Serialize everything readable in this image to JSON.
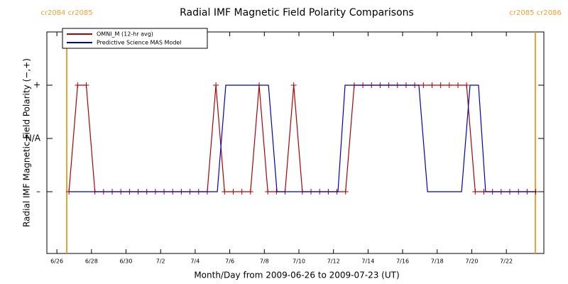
{
  "chart_data": {
    "type": "line",
    "title": "Radial IMF Magnetic Field Polarity Comparisons",
    "x_label": "Month/Day from 2009-06-26 to 2009-07-23 (UT)",
    "y_label": "Radial IMF Magnetic Field Polarity (−,+)",
    "xlim": [
      25.42,
      54.17
    ],
    "ylim": [
      -2.16,
      2
    ],
    "xticks": [
      {
        "value": 26,
        "label": "6/26"
      },
      {
        "value": 28,
        "label": "6/28"
      },
      {
        "value": 30,
        "label": "6/30"
      },
      {
        "value": 32,
        "label": "7/2"
      },
      {
        "value": 34,
        "label": "7/4"
      },
      {
        "value": 36,
        "label": "7/6"
      },
      {
        "value": 38,
        "label": "7/8"
      },
      {
        "value": 40,
        "label": "7/10"
      },
      {
        "value": 42,
        "label": "7/12"
      },
      {
        "value": 44,
        "label": "7/14"
      },
      {
        "value": 46,
        "label": "7/16"
      },
      {
        "value": 48,
        "label": "7/18"
      },
      {
        "value": 50,
        "label": "7/20"
      },
      {
        "value": 52,
        "label": "7/22"
      }
    ],
    "yticks": [
      {
        "value": 1,
        "label": "+"
      },
      {
        "value": 0,
        "label": "N/A"
      },
      {
        "value": -1,
        "label": "–"
      }
    ],
    "boundaries": [
      {
        "x": 26.57,
        "label": "cr2084 cr2085",
        "color": "#f0a030"
      },
      {
        "x": 53.68,
        "label": "cr2085 cr2086",
        "color": "#f0a030"
      }
    ],
    "legend": "top-left",
    "series": [
      {
        "name": "OMNI_M (12-hr avg)",
        "color": "#b00000",
        "marker": "+",
        "x": [
          26.7,
          27.2,
          27.7,
          28.2,
          28.7,
          29.2,
          29.7,
          30.2,
          30.7,
          31.2,
          31.7,
          32.2,
          32.7,
          33.2,
          33.7,
          34.2,
          34.7,
          35.2,
          35.7,
          36.2,
          36.7,
          37.2,
          37.7,
          38.2,
          38.7,
          39.2,
          39.7,
          40.2,
          40.7,
          41.2,
          41.7,
          42.2,
          42.7,
          43.2,
          43.7,
          44.2,
          44.7,
          45.2,
          45.7,
          46.2,
          46.7,
          47.2,
          47.7,
          48.2,
          48.7,
          49.2,
          49.7,
          50.2,
          50.7,
          51.2,
          51.7,
          52.2,
          52.7,
          53.2,
          53.7
        ],
        "values": [
          -1,
          1,
          1,
          -1,
          -1,
          -1,
          -1,
          -1,
          -1,
          -1,
          -1,
          -1,
          -1,
          -1,
          -1,
          -1,
          -1,
          1,
          -1,
          -1,
          -1,
          -1,
          1,
          -1,
          -1,
          -1,
          1,
          -1,
          -1,
          -1,
          -1,
          -1,
          -1,
          1,
          1,
          1,
          1,
          1,
          1,
          1,
          1,
          1,
          1,
          1,
          1,
          1,
          1,
          -1,
          -1,
          -1,
          -1,
          -1,
          -1,
          -1,
          -1
        ]
      },
      {
        "name": "Predictive Science MAS Model",
        "color": "#0000c0",
        "x": [
          26.7,
          35.28,
          35.77,
          38.24,
          38.73,
          42.26,
          42.67,
          46.94,
          47.44,
          49.41,
          49.9,
          50.39,
          50.8,
          53.72
        ],
        "values": [
          -1,
          -1,
          1,
          1,
          -1,
          -1,
          1,
          1,
          -1,
          -1,
          1,
          1,
          -1,
          -1
        ]
      }
    ]
  }
}
